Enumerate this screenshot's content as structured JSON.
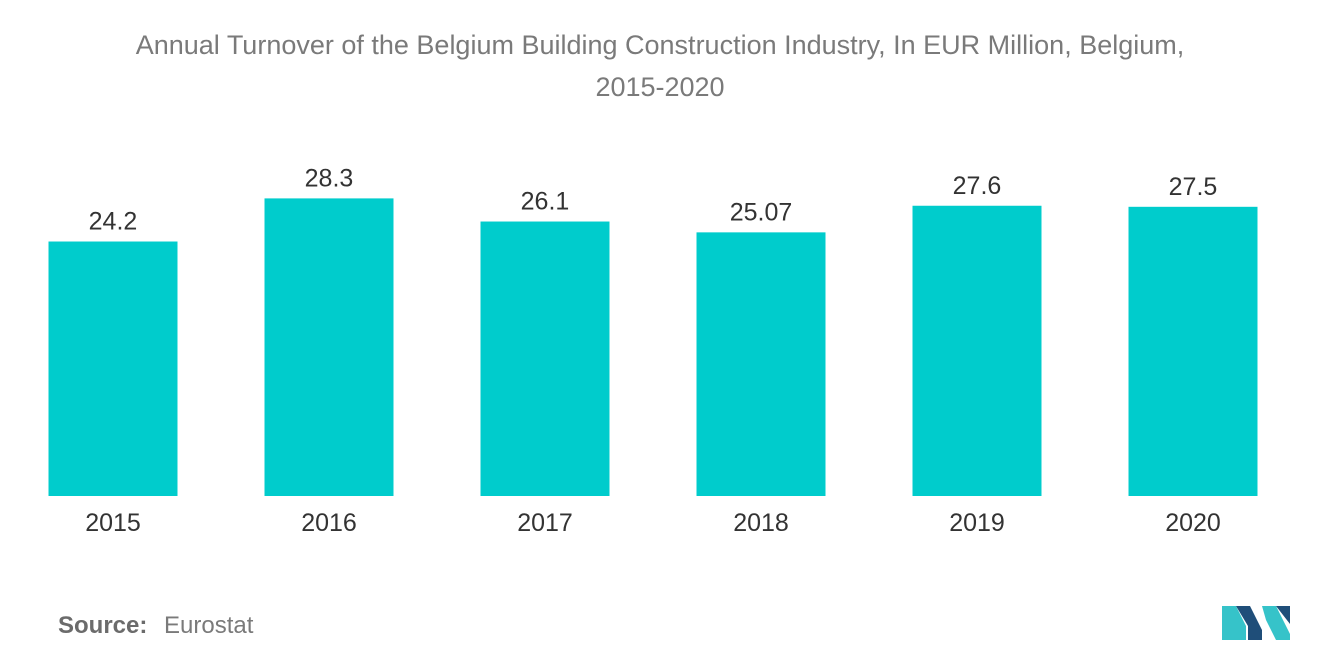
{
  "chart_data": {
    "type": "bar",
    "title_line1": "Annual Turnover of the Belgium Building Construction Industry, In EUR Million, Belgium,",
    "title_line2": "2015-2020",
    "categories": [
      "2015",
      "2016",
      "2017",
      "2018",
      "2019",
      "2020"
    ],
    "values": [
      24.2,
      28.3,
      26.1,
      25.07,
      27.6,
      27.5
    ],
    "value_labels": [
      "24.2",
      "28.3",
      "26.1",
      "25.07",
      "27.6",
      "27.5"
    ],
    "xlabel": "",
    "ylabel": "",
    "ylim": [
      0,
      31
    ],
    "grid": false,
    "legend": "none",
    "bar_color": "#00cccc"
  },
  "source": {
    "label": "Source:",
    "value": "Eurostat"
  },
  "colors": {
    "text": "#7a7a7a",
    "logo_dark": "#1f4e79",
    "logo_light": "#36c3c9"
  },
  "logo_icon": "mordor-logo-icon"
}
